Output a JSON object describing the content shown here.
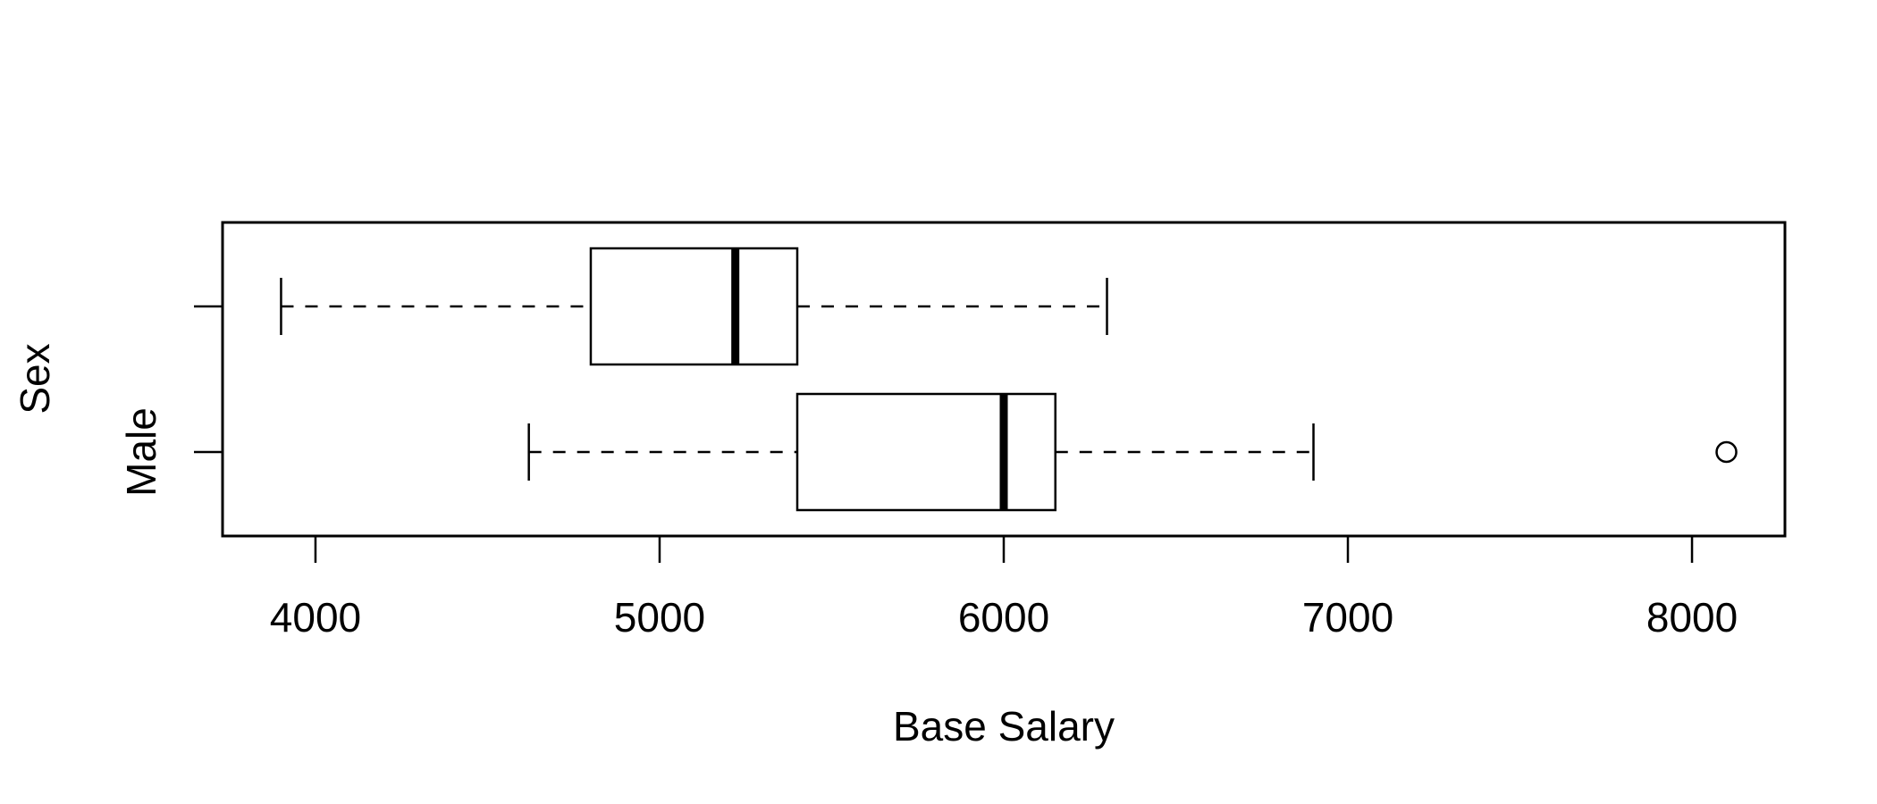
{
  "chart_data": {
    "type": "boxplot",
    "orientation": "horizontal",
    "title": "",
    "xlabel": "Base Salary",
    "ylabel": "Sex",
    "xlim": [
      3730,
      8270
    ],
    "x_ticks": [
      4000,
      5000,
      6000,
      7000,
      8000
    ],
    "x_tick_labels": [
      "4000",
      "5000",
      "6000",
      "7000",
      "8000"
    ],
    "categories": [
      "",
      "Male"
    ],
    "boxes": [
      {
        "category": "",
        "whisker_low": 3900,
        "q1": 4800,
        "median": 5220,
        "q3": 5400,
        "whisker_high": 6300,
        "outliers": []
      },
      {
        "category": "Male",
        "whisker_low": 4620,
        "q1": 5400,
        "median": 6000,
        "q3": 6150,
        "whisker_high": 6900,
        "outliers": [
          8100
        ]
      }
    ],
    "grid": false,
    "legend": "none"
  },
  "colors": {
    "stroke": "#000000",
    "fill": "#ffffff"
  }
}
